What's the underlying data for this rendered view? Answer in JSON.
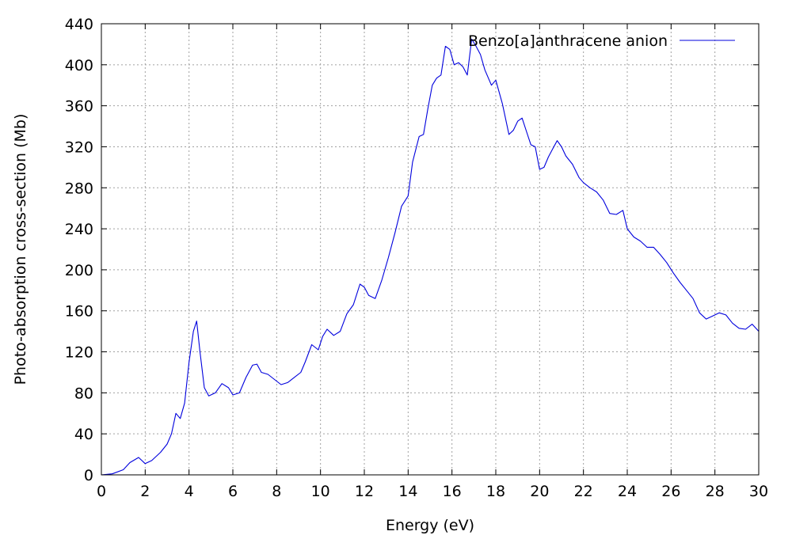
{
  "chart_data": {
    "type": "line",
    "title": "",
    "xlabel": "Energy (eV)",
    "ylabel": "Photo-absorption cross-section (Mb)",
    "xlim": [
      0,
      30
    ],
    "ylim": [
      0,
      440
    ],
    "xticks": [
      0,
      2,
      4,
      6,
      8,
      10,
      12,
      14,
      16,
      18,
      20,
      22,
      24,
      26,
      28,
      30
    ],
    "yticks": [
      0,
      40,
      80,
      120,
      160,
      200,
      240,
      280,
      320,
      360,
      400,
      440
    ],
    "grid": true,
    "legend_position": "top-right",
    "series": [
      {
        "name": "Benzo[a]anthracene anion",
        "color": "#0000dd",
        "x": [
          0,
          0.5,
          1.0,
          1.3,
          1.7,
          2.0,
          2.3,
          2.7,
          3.0,
          3.2,
          3.4,
          3.6,
          3.8,
          4.0,
          4.2,
          4.35,
          4.5,
          4.7,
          4.9,
          5.2,
          5.5,
          5.8,
          6.0,
          6.3,
          6.6,
          6.9,
          7.1,
          7.3,
          7.6,
          7.9,
          8.2,
          8.5,
          8.8,
          9.1,
          9.3,
          9.6,
          9.9,
          10.1,
          10.3,
          10.6,
          10.9,
          11.2,
          11.5,
          11.8,
          12.0,
          12.2,
          12.5,
          12.8,
          13.1,
          13.4,
          13.7,
          14.0,
          14.2,
          14.5,
          14.7,
          14.9,
          15.1,
          15.3,
          15.5,
          15.7,
          15.9,
          16.1,
          16.3,
          16.5,
          16.7,
          16.9,
          17.1,
          17.3,
          17.5,
          17.8,
          18.0,
          18.3,
          18.6,
          18.8,
          19.0,
          19.2,
          19.4,
          19.6,
          19.8,
          20.0,
          20.2,
          20.4,
          20.6,
          20.8,
          21.0,
          21.2,
          21.5,
          21.8,
          22.0,
          22.3,
          22.6,
          22.9,
          23.2,
          23.5,
          23.8,
          24.0,
          24.3,
          24.6,
          24.9,
          25.2,
          25.5,
          25.8,
          26.1,
          26.4,
          26.7,
          27.0,
          27.3,
          27.6,
          27.9,
          28.2,
          28.5,
          28.8,
          29.1,
          29.4,
          29.7,
          30.0
        ],
        "y": [
          0,
          1,
          5,
          12,
          17,
          11,
          14,
          22,
          30,
          40,
          60,
          55,
          70,
          110,
          140,
          150,
          120,
          85,
          77,
          80,
          89,
          85,
          78,
          80,
          95,
          107,
          108,
          100,
          98,
          93,
          88,
          90,
          95,
          100,
          110,
          127,
          122,
          135,
          142,
          136,
          140,
          157,
          166,
          186,
          183,
          175,
          172,
          190,
          212,
          236,
          262,
          272,
          305,
          330,
          332,
          357,
          380,
          387,
          390,
          418,
          415,
          400,
          402,
          398,
          390,
          425,
          418,
          410,
          395,
          380,
          385,
          362,
          332,
          336,
          345,
          348,
          335,
          322,
          320,
          298,
          300,
          310,
          318,
          326,
          320,
          311,
          303,
          290,
          285,
          280,
          276,
          268,
          255,
          254,
          258,
          240,
          232,
          228,
          222,
          222,
          215,
          207,
          197,
          188,
          180,
          172,
          158,
          152,
          155,
          158,
          156,
          148,
          143,
          142,
          147,
          140
        ]
      }
    ]
  }
}
